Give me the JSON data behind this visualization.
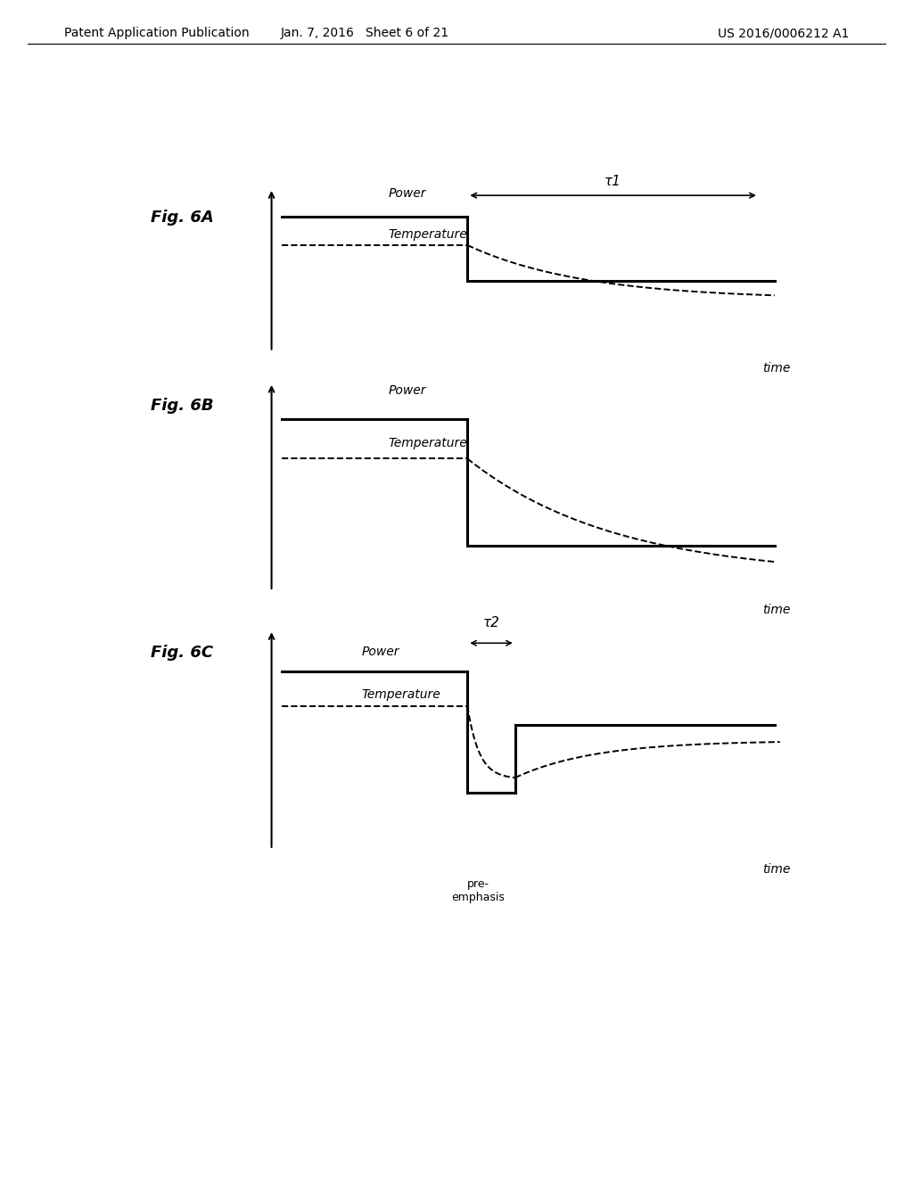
{
  "header_left": "Patent Application Publication",
  "header_center": "Jan. 7, 2016   Sheet 6 of 21",
  "header_right": "US 2016/0006212 A1",
  "fig6A_label": "Fig. 6A",
  "fig6B_label": "Fig. 6B",
  "fig6C_label": "Fig. 6C",
  "power_label": "Power",
  "temperature_label": "Temperature",
  "time_label": "time",
  "tau1_label": "τ1",
  "tau2_label": "τ2",
  "pre_emphasis_label": "pre-\nemphasis",
  "bg_color": "#ffffff",
  "line_color": "#000000",
  "font_size_header": 10,
  "font_size_label": 10,
  "font_size_fig": 13
}
